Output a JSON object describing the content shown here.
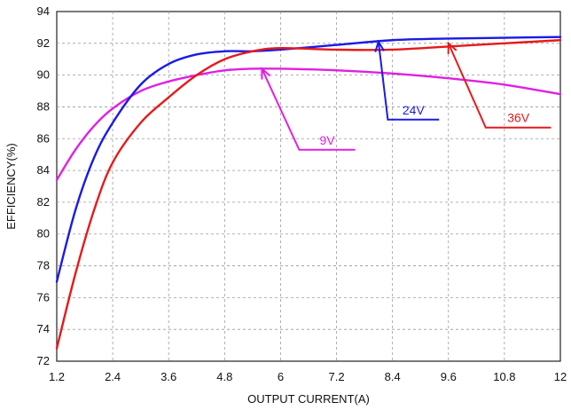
{
  "chart_data": {
    "type": "line",
    "title": "",
    "xlabel": "OUTPUT CURRENT(A)",
    "ylabel": "EFFICIENCY(%)",
    "xlim": [
      1.2,
      12
    ],
    "ylim": [
      72,
      94
    ],
    "xticks": [
      1.2,
      2.4,
      3.6,
      4.8,
      6,
      7.2,
      8.4,
      9.6,
      10.8,
      12
    ],
    "xtick_labels": [
      "1.2",
      "2.4",
      "3.6",
      "4.8",
      "6",
      "7.2",
      "8.4",
      "9.6",
      "10.8",
      "12"
    ],
    "yticks": [
      72,
      74,
      76,
      78,
      80,
      82,
      84,
      86,
      88,
      90,
      92,
      94
    ],
    "ytick_labels": [
      "72",
      "74",
      "76",
      "78",
      "80",
      "82",
      "84",
      "86",
      "88",
      "90",
      "92",
      "94"
    ],
    "grid": true,
    "series": [
      {
        "name": "9V",
        "color": "#e020e0",
        "x": [
          1.2,
          1.6,
          2.0,
          2.4,
          3.0,
          3.6,
          4.2,
          4.8,
          5.4,
          6.0,
          7.2,
          8.4,
          9.6,
          10.8,
          12.0
        ],
        "y": [
          83.4,
          85.3,
          86.8,
          87.9,
          89.0,
          89.6,
          90.0,
          90.3,
          90.4,
          90.4,
          90.3,
          90.1,
          89.8,
          89.4,
          88.8
        ]
      },
      {
        "name": "24V",
        "color": "#1a1ae6",
        "x": [
          1.2,
          1.6,
          2.0,
          2.4,
          3.0,
          3.6,
          4.2,
          4.8,
          5.4,
          6.0,
          7.2,
          8.4,
          9.6,
          10.8,
          12.0
        ],
        "y": [
          77.0,
          81.5,
          84.8,
          87.0,
          89.4,
          90.7,
          91.3,
          91.5,
          91.5,
          91.6,
          91.9,
          92.2,
          92.3,
          92.35,
          92.4
        ]
      },
      {
        "name": "36V",
        "color": "#e61a1a",
        "x": [
          1.2,
          1.6,
          2.0,
          2.4,
          3.0,
          3.6,
          4.2,
          4.8,
          5.4,
          6.0,
          7.2,
          8.4,
          9.6,
          10.8,
          12.0
        ],
        "y": [
          72.8,
          77.5,
          81.5,
          84.5,
          87.0,
          88.6,
          90.0,
          91.0,
          91.5,
          91.7,
          91.6,
          91.6,
          91.8,
          92.0,
          92.2
        ]
      }
    ],
    "annotations": [
      {
        "text": "9V",
        "series": 0,
        "point": [
          5.6,
          90.4
        ],
        "elbow": [
          6.4,
          85.3
        ],
        "end": [
          7.6,
          85.3
        ]
      },
      {
        "text": "24V",
        "series": 1,
        "point": [
          8.1,
          92.1
        ],
        "elbow": [
          8.3,
          87.2
        ],
        "end": [
          9.4,
          87.2
        ]
      },
      {
        "text": "36V",
        "series": 2,
        "point": [
          9.6,
          92.0
        ],
        "elbow": [
          10.4,
          86.7
        ],
        "end": [
          11.8,
          86.7
        ]
      }
    ]
  }
}
